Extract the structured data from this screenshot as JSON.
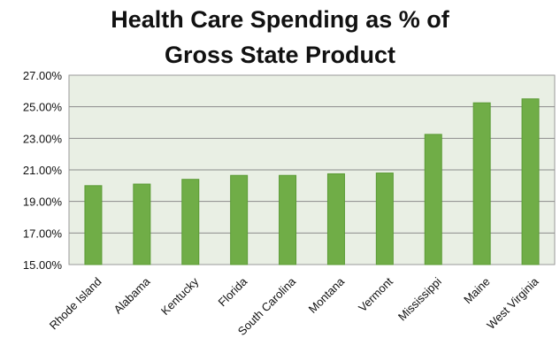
{
  "chart_data": {
    "type": "bar",
    "title_lines": [
      "Health Care Spending as % of",
      "Gross State Product"
    ],
    "xlabel": "",
    "ylabel": "",
    "categories": [
      "Rhode Island",
      "Alabama",
      "Kentucky",
      "Florida",
      "South Carolina",
      "Montana",
      "Vermont",
      "Mississippi",
      "Maine",
      "West Virginia"
    ],
    "values": [
      20.0,
      20.1,
      20.4,
      20.65,
      20.65,
      20.75,
      20.8,
      23.25,
      25.25,
      25.5
    ],
    "ylim": [
      15,
      27
    ],
    "yticks": [
      "15.00%",
      "17.00%",
      "19.00%",
      "21.00%",
      "23.00%",
      "25.00%",
      "27.00%"
    ],
    "grid": true,
    "legend": "none",
    "bar_color": "#70AD47",
    "plot_background": "#E9EFE4"
  }
}
